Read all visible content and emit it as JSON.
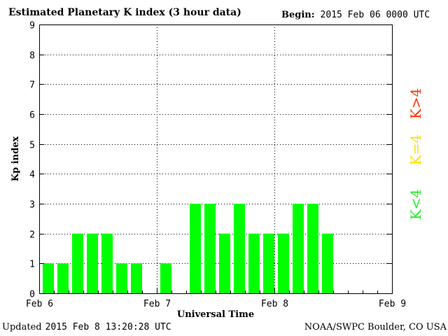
{
  "header": {
    "title": "Estimated Planetary K index (3 hour data)",
    "begin_label": "Begin:",
    "begin_value": "2015 Feb 06 0000 UTC"
  },
  "footer": {
    "updated_label": "Updated",
    "updated_value": "2015 Feb  8 13:20:28 UTC",
    "credit": "NOAA/SWPC Boulder, CO USA"
  },
  "legend": [
    {
      "label": "K>4",
      "color": "#ff3300"
    },
    {
      "label": "K=4",
      "color": "#ffdd00"
    },
    {
      "label": "K<4",
      "color": "#22ee22"
    }
  ],
  "chart_data": {
    "type": "bar",
    "title": "Estimated Planetary K index (3 hour data)",
    "xlabel": "Universal Time",
    "ylabel": "Kp index",
    "x_tick_labels": [
      "Feb 6",
      "Feb 7",
      "Feb 8",
      "Feb 9"
    ],
    "y_ticks": [
      0,
      1,
      2,
      3,
      4,
      5,
      6,
      7,
      8,
      9
    ],
    "ylim": [
      0,
      9
    ],
    "bins_per_day": 8,
    "days": 3,
    "grid": "dotted",
    "bar_color": "#00ff00",
    "categories": [
      "Feb 6 00",
      "Feb 6 03",
      "Feb 6 06",
      "Feb 6 09",
      "Feb 6 12",
      "Feb 6 15",
      "Feb 6 18",
      "Feb 6 21",
      "Feb 7 00",
      "Feb 7 03",
      "Feb 7 06",
      "Feb 7 09",
      "Feb 7 12",
      "Feb 7 15",
      "Feb 7 18",
      "Feb 7 21",
      "Feb 8 00",
      "Feb 8 03",
      "Feb 8 06",
      "Feb 8 09"
    ],
    "values": [
      1,
      1,
      2,
      2,
      2,
      1,
      1,
      0,
      1,
      0,
      3,
      3,
      2,
      3,
      2,
      2,
      2,
      3,
      3,
      2
    ]
  }
}
